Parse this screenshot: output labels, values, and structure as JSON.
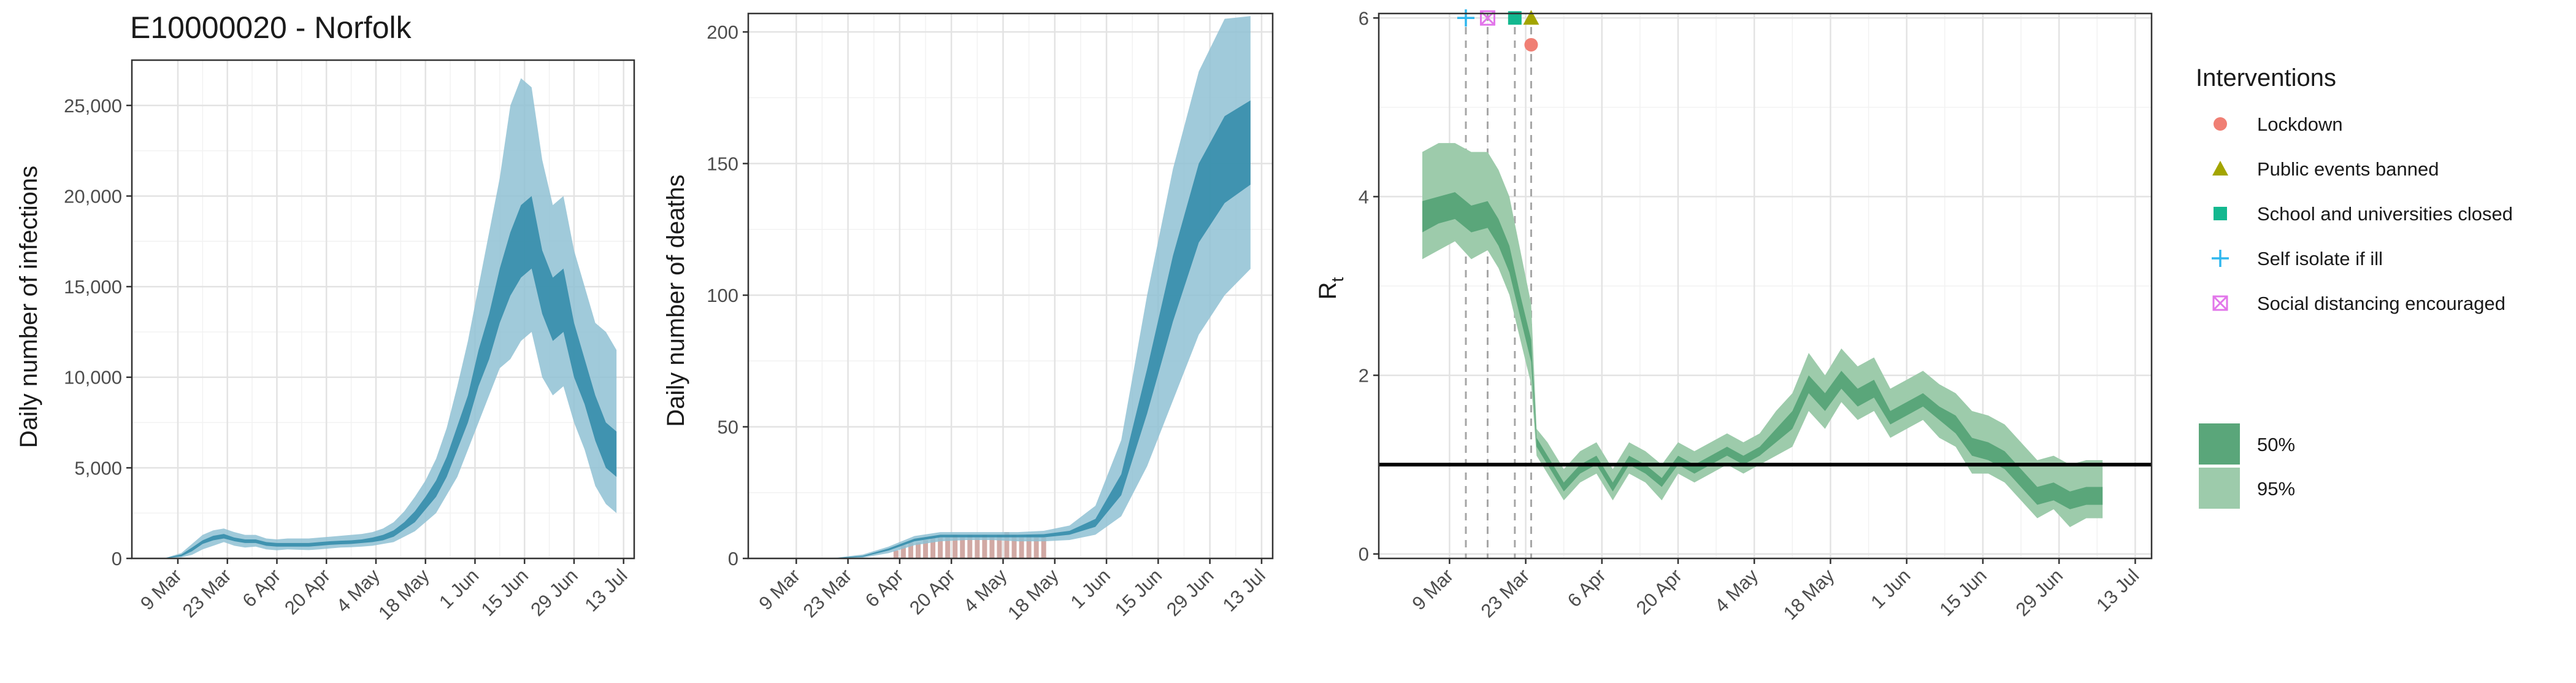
{
  "colors": {
    "infections_dark": "#2f8aa8",
    "infections_light": "#8fc1d3",
    "deaths_obs": "#c99a94",
    "rt_dark": "#5aa67a",
    "rt_light": "#9dcbab",
    "reference_line": "#000000",
    "intervention_line": "#a6a6a6",
    "lockdown": "#f07f74",
    "public_events": "#a3a500",
    "school": "#13b88f",
    "self_isolate": "#2fb7ee",
    "social_distancing": "#e276ea"
  },
  "chart_data": [
    {
      "type": "area",
      "title": "E10000020 - Norfolk",
      "xlabel": "",
      "ylabel": "Daily number of infections",
      "xlim": [
        "2020-02-25",
        "2020-07-16"
      ],
      "ylim": [
        0,
        27500
      ],
      "yticks": [
        0,
        5000,
        10000,
        15000,
        20000,
        25000
      ],
      "ytick_labels": [
        "0",
        "5,000",
        "10,000",
        "15,000",
        "20,000",
        "25,000"
      ],
      "xticks": [
        "2020-03-09",
        "2020-03-23",
        "2020-04-06",
        "2020-04-20",
        "2020-05-04",
        "2020-05-18",
        "2020-06-01",
        "2020-06-15",
        "2020-06-29",
        "2020-07-13"
      ],
      "xtick_labels": [
        "9 Mar",
        "23 Mar",
        "6 Apr",
        "20 Apr",
        "4 May",
        "18 May",
        "1 Jun",
        "15 Jun",
        "29 Jun",
        "13 Jul"
      ],
      "grid": true,
      "series": [
        {
          "x": [
            "2020-03-05",
            "2020-03-10",
            "2020-03-13",
            "2020-03-16",
            "2020-03-19",
            "2020-03-22",
            "2020-03-25",
            "2020-03-28",
            "2020-03-31",
            "2020-04-03",
            "2020-04-06",
            "2020-04-09",
            "2020-04-12",
            "2020-04-15",
            "2020-04-18",
            "2020-04-21",
            "2020-04-24",
            "2020-04-27",
            "2020-04-30",
            "2020-05-03",
            "2020-05-06",
            "2020-05-09",
            "2020-05-12",
            "2020-05-15",
            "2020-05-18",
            "2020-05-21",
            "2020-05-24",
            "2020-05-27",
            "2020-05-30",
            "2020-06-02",
            "2020-06-05",
            "2020-06-08",
            "2020-06-11",
            "2020-06-14",
            "2020-06-17",
            "2020-06-20",
            "2020-06-23",
            "2020-06-26",
            "2020-06-29",
            "2020-07-02",
            "2020-07-05",
            "2020-07-08",
            "2020-07-11"
          ],
          "low95": [
            0,
            60,
            200,
            500,
            700,
            900,
            700,
            600,
            650,
            500,
            450,
            500,
            480,
            460,
            500,
            550,
            600,
            620,
            650,
            700,
            800,
            900,
            1200,
            1500,
            2000,
            2500,
            3500,
            4500,
            6000,
            7500,
            9000,
            10500,
            11000,
            12000,
            12500,
            10000,
            9000,
            9500,
            7500,
            6000,
            4000,
            3000,
            2500
          ],
          "low50": [
            0,
            120,
            400,
            800,
            1000,
            1100,
            950,
            850,
            850,
            700,
            650,
            650,
            650,
            650,
            700,
            750,
            780,
            800,
            850,
            900,
            1000,
            1200,
            1600,
            2000,
            2700,
            3400,
            4500,
            6000,
            7500,
            9500,
            11000,
            13000,
            14500,
            15500,
            16000,
            13500,
            12000,
            12500,
            10000,
            8500,
            6500,
            5000,
            4500
          ],
          "high50": [
            0,
            220,
            600,
            1000,
            1250,
            1350,
            1150,
            1050,
            1050,
            900,
            850,
            850,
            850,
            850,
            900,
            950,
            980,
            1000,
            1050,
            1150,
            1300,
            1550,
            2000,
            2600,
            3400,
            4300,
            5600,
            7300,
            9000,
            11500,
            13500,
            16000,
            18000,
            19500,
            20000,
            17000,
            15500,
            16000,
            13000,
            11000,
            9000,
            7500,
            7000
          ],
          "high95": [
            0,
            300,
            800,
            1300,
            1550,
            1650,
            1450,
            1300,
            1300,
            1100,
            1050,
            1100,
            1100,
            1100,
            1150,
            1200,
            1250,
            1300,
            1350,
            1450,
            1650,
            2000,
            2600,
            3400,
            4300,
            5500,
            7200,
            9500,
            12000,
            15000,
            18000,
            21000,
            25000,
            26500,
            26000,
            22000,
            19500,
            20000,
            17000,
            15000,
            13000,
            12500,
            11500
          ]
        }
      ]
    },
    {
      "type": "area",
      "title": "",
      "xlabel": "",
      "ylabel": "Daily number of deaths",
      "xlim": [
        "2020-02-25",
        "2020-07-16"
      ],
      "ylim": [
        0,
        207
      ],
      "yticks": [
        0,
        50,
        100,
        150,
        200
      ],
      "ytick_labels": [
        "0",
        "50",
        "100",
        "150",
        "200"
      ],
      "xticks": [
        "2020-03-09",
        "2020-03-23",
        "2020-04-06",
        "2020-04-20",
        "2020-05-04",
        "2020-05-18",
        "2020-06-01",
        "2020-06-15",
        "2020-06-29",
        "2020-07-13"
      ],
      "xtick_labels": [
        "9 Mar",
        "23 Mar",
        "6 Apr",
        "20 Apr",
        "4 May",
        "18 May",
        "1 Jun",
        "15 Jun",
        "29 Jun",
        "13 Jul"
      ],
      "grid": true,
      "series": [
        {
          "x": [
            "2020-03-10",
            "2020-03-20",
            "2020-03-27",
            "2020-04-03",
            "2020-04-10",
            "2020-04-17",
            "2020-04-24",
            "2020-05-01",
            "2020-05-08",
            "2020-05-15",
            "2020-05-22",
            "2020-05-29",
            "2020-06-05",
            "2020-06-12",
            "2020-06-19",
            "2020-06-26",
            "2020-07-03",
            "2020-07-10"
          ],
          "low95": [
            0,
            0,
            0.3,
            2,
            5,
            6.5,
            7,
            7,
            6.5,
            6.5,
            7,
            9,
            16,
            35,
            60,
            85,
            100,
            110
          ],
          "low50": [
            0,
            0.1,
            0.6,
            3,
            6.5,
            8,
            8,
            8,
            8,
            8,
            9,
            12,
            24,
            55,
            90,
            120,
            135,
            142
          ],
          "high50": [
            0,
            0.2,
            1,
            3.8,
            7.5,
            9,
            9,
            9,
            9,
            9.2,
            10.5,
            15,
            32,
            72,
            115,
            150,
            168,
            174
          ],
          "high95": [
            0,
            0.3,
            1.5,
            4.5,
            8.5,
            10,
            10,
            10,
            10,
            10.5,
            12.5,
            20,
            45,
            100,
            148,
            185,
            205,
            206
          ]
        }
      ],
      "observed": {
        "x": [
          "2020-04-05",
          "2020-04-07",
          "2020-04-09",
          "2020-04-11",
          "2020-04-13",
          "2020-04-15",
          "2020-04-17",
          "2020-04-19",
          "2020-04-21",
          "2020-04-23",
          "2020-04-25",
          "2020-04-27",
          "2020-04-29",
          "2020-05-01",
          "2020-05-03",
          "2020-05-05",
          "2020-05-07",
          "2020-05-09",
          "2020-05-11",
          "2020-05-13",
          "2020-05-15"
        ],
        "values": [
          3,
          5,
          6,
          6,
          7,
          8,
          8,
          8,
          9,
          8,
          9,
          8,
          9,
          8,
          9,
          10,
          9,
          8,
          9,
          8,
          8
        ]
      }
    },
    {
      "type": "area",
      "title": "",
      "xlabel": "",
      "ylabel": "R",
      "ylabel_sub": "t",
      "xlim": [
        "2020-02-25",
        "2020-07-16"
      ],
      "ylim": [
        -0.05,
        6.05
      ],
      "yticks": [
        0,
        2,
        4,
        6
      ],
      "ytick_labels": [
        "0",
        "2",
        "4",
        "6"
      ],
      "xticks": [
        "2020-03-09",
        "2020-03-23",
        "2020-04-06",
        "2020-04-20",
        "2020-05-04",
        "2020-05-18",
        "2020-06-01",
        "2020-06-15",
        "2020-06-29",
        "2020-07-13"
      ],
      "xtick_labels": [
        "9 Mar",
        "23 Mar",
        "6 Apr",
        "20 Apr",
        "4 May",
        "18 May",
        "1 Jun",
        "15 Jun",
        "29 Jun",
        "13 Jul"
      ],
      "grid": true,
      "reference_line": 1,
      "series": [
        {
          "x": [
            "2020-03-04",
            "2020-03-07",
            "2020-03-10",
            "2020-03-13",
            "2020-03-16",
            "2020-03-18",
            "2020-03-20",
            "2020-03-22",
            "2020-03-24",
            "2020-03-25",
            "2020-03-27",
            "2020-03-30",
            "2020-04-02",
            "2020-04-05",
            "2020-04-08",
            "2020-04-11",
            "2020-04-14",
            "2020-04-17",
            "2020-04-20",
            "2020-04-23",
            "2020-04-26",
            "2020-04-29",
            "2020-05-02",
            "2020-05-05",
            "2020-05-08",
            "2020-05-11",
            "2020-05-14",
            "2020-05-17",
            "2020-05-20",
            "2020-05-23",
            "2020-05-26",
            "2020-05-29",
            "2020-06-01",
            "2020-06-04",
            "2020-06-07",
            "2020-06-10",
            "2020-06-13",
            "2020-06-16",
            "2020-06-19",
            "2020-06-22",
            "2020-06-25",
            "2020-06-28",
            "2020-07-01",
            "2020-07-04",
            "2020-07-07"
          ],
          "low95": [
            3.3,
            3.4,
            3.5,
            3.3,
            3.4,
            3.2,
            2.9,
            2.4,
            1.9,
            1.1,
            0.9,
            0.6,
            0.8,
            0.9,
            0.6,
            0.9,
            0.8,
            0.6,
            0.9,
            0.8,
            0.9,
            1.0,
            0.9,
            1.0,
            1.1,
            1.2,
            1.6,
            1.4,
            1.7,
            1.5,
            1.6,
            1.3,
            1.4,
            1.5,
            1.3,
            1.2,
            0.9,
            0.9,
            0.8,
            0.6,
            0.4,
            0.5,
            0.3,
            0.4,
            0.4
          ],
          "low50": [
            3.6,
            3.7,
            3.75,
            3.6,
            3.65,
            3.45,
            3.15,
            2.65,
            2.15,
            1.2,
            1.0,
            0.7,
            0.9,
            1.0,
            0.7,
            1.0,
            0.9,
            0.75,
            1.0,
            0.9,
            1.0,
            1.1,
            1.0,
            1.1,
            1.25,
            1.4,
            1.8,
            1.6,
            1.85,
            1.65,
            1.75,
            1.45,
            1.55,
            1.65,
            1.5,
            1.35,
            1.1,
            1.05,
            0.95,
            0.75,
            0.55,
            0.6,
            0.5,
            0.55,
            0.55
          ],
          "high50": [
            3.95,
            4.0,
            4.05,
            3.9,
            3.95,
            3.75,
            3.45,
            2.9,
            2.4,
            1.3,
            1.1,
            0.8,
            1.0,
            1.1,
            0.8,
            1.1,
            1.0,
            0.85,
            1.1,
            1.0,
            1.1,
            1.2,
            1.1,
            1.2,
            1.4,
            1.6,
            2.0,
            1.8,
            2.05,
            1.85,
            1.95,
            1.6,
            1.7,
            1.8,
            1.65,
            1.55,
            1.3,
            1.25,
            1.15,
            0.95,
            0.75,
            0.8,
            0.7,
            0.75,
            0.75
          ],
          "high95": [
            4.5,
            4.6,
            4.6,
            4.5,
            4.5,
            4.3,
            4.0,
            3.4,
            2.8,
            1.4,
            1.25,
            0.95,
            1.15,
            1.25,
            0.95,
            1.25,
            1.15,
            1.0,
            1.25,
            1.15,
            1.25,
            1.35,
            1.25,
            1.35,
            1.6,
            1.8,
            2.25,
            2.0,
            2.3,
            2.1,
            2.2,
            1.85,
            1.95,
            2.05,
            1.9,
            1.8,
            1.6,
            1.55,
            1.45,
            1.25,
            1.05,
            1.1,
            1.0,
            1.05,
            1.05
          ]
        }
      ],
      "interventions": [
        {
          "key": "self_isolate",
          "date": "2020-03-12",
          "y": 6
        },
        {
          "key": "social_distancing",
          "date": "2020-03-16",
          "y": 6
        },
        {
          "key": "school",
          "date": "2020-03-21",
          "y": 6
        },
        {
          "key": "public_events",
          "date": "2020-03-24",
          "y": 6
        },
        {
          "key": "lockdown",
          "date": "2020-03-24",
          "y": 5.7
        }
      ]
    }
  ],
  "legend": {
    "interventions_title": "Interventions",
    "items": [
      {
        "key": "lockdown",
        "label": "Lockdown",
        "icon": "circle-icon"
      },
      {
        "key": "public_events",
        "label": "Public events banned",
        "icon": "triangle-icon"
      },
      {
        "key": "school",
        "label": "School and universities closed",
        "icon": "square-icon"
      },
      {
        "key": "self_isolate",
        "label": "Self isolate if ill",
        "icon": "plus-icon"
      },
      {
        "key": "social_distancing",
        "label": "Social distancing encouraged",
        "icon": "boxed-x-icon"
      }
    ],
    "ci_items": [
      {
        "label": "50%",
        "color_key": "rt_dark"
      },
      {
        "label": "95%",
        "color_key": "rt_light"
      }
    ]
  }
}
